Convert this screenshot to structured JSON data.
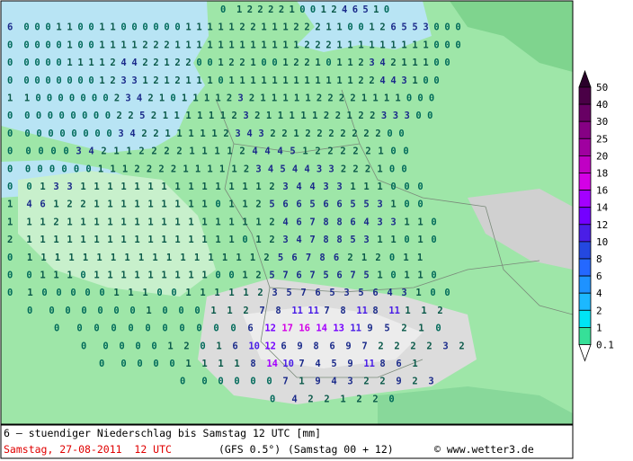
{
  "map": {
    "rows": [
      "0 1 2 2 2 2 1 0 0 1 2 4 6 5 1 0",
      "6 0 0 0 1 1 0 0 1 1 0 0 0 0 0 0 1 1 1 1 1 2 2 1 1 1 2 2 2 1 1 0 0 1 2 6 5 5 3 0 0 0",
      "0 0 0 0 0 1 0 0 1 1 1 1 2 2 2 1 1 1 1 1 1 1 1 1 1 1 1 2 2 2 1 1 1 1 1 1 1 1 1 0 0 0",
      "0 0 0 0 0 1 1 1 1 2 4 4 2 2 1 2 2 0 0 1 2 2 1 0 0 1 2 2 1 0 1 1 2 3 4 2 1 1 1 0 0",
      "0 0 0 0 0 0 0 0 1 2 3 3 1 2 1 2 1 1 1 0 1 1 1 1 1 1 1 1 1 1 1 1 2 2 4 4 3 1 0 0",
      "1 1 0 0 0 0 0 0 0 2 3 4 2 1 0 1 1 1 1 2 3 2 1 1 1 1 1 2 2 2 2 1 1 1 1 0 0 0",
      "0 0 0 0 0 0 0 0 0 2 2 5 2 1 1 1 1 1 1 2 3 2 1 1 1 1 1 2 2 1 2 2 3 3 3 0 0",
      "0 0 0 0 0 0 0 0 0 3 4 2 2 1 1 1 1 1 2 3 4 3 2 2 1 2 2 2 2 2 2 2 0 0",
      "0 0 0 0 0 3 4 2 1 1 2 2 2 2 1 1 1 1 2 4 4 4 5 1 2 2 2 2 2 1 0 0",
      "0 0 0 0 0 0 0 1 1 1 2 2 2 2 1 1 1 1 1 2 3 4 5 4 4 3 3 2 2 2 1 0 0",
      "0 0 1 3 3 1 1 1 1 1 1 1 1 1 1 1 1 1 1 2 3 4 4 3 3 1 1 1 0 0 0",
      "1 4 6 1 2 2 1 1 1 1 1 1 1 1 1 0 1 1 2 5 6 6 5 6 6 5 5 3 1 0 0",
      "1 1 1 2 1 1 1 1 1 1 1 1 1 1 1 1 1 1 1 2 4 6 7 8 8 6 4 3 3 1 1 0",
      "2 1 1 1 1 1 1 1 1 1 1 1 1 1 1 1 1 0 1 2 3 4 7 8 8 5 3 1 1 0 1 0",
      "0 1 1 1 1 1 1 1 1 1 1 1 1 1 1 1 1 1 2 5 6 7 8 6 2 1 2 0 1 1",
      "0 0 1 1 1 0 1 1 1 1 1 1 1 1 1 0 0 1 2 5 7 6 7 5 6 7 5 1 0 1 1 0",
      "0 1 0 0 0 0 0 1 1 1 0 0 1 1 1 1 1 2 3 5 7 6 5 3 5 6 4 3 1 0 0",
      "0 0 0 0 0 0 0 1 0 0 0 1 1 2 7 8 11 11 7 8 11 8 11 1 1 2",
      "0 0 0 0 0 0 0 0 0 0 0 6 12 17 16 14 13 11 9 5 2 1 0",
      "0 0 0 0 0 1 2 0 1 6 10 12 6 9 8 6 9 7 2 2 2 2 3 2",
      "0 0 0 0 0 1 1 1 1 8 14 10 7 4 5 9 11 8 6 1",
      "0 0 0 0 0 0 7 1 9 4 3 2 2 9 2 3",
      "0 4 2 2 1 2 2 0"
    ]
  },
  "colorbar": {
    "labels": [
      50,
      40,
      30,
      25,
      20,
      18,
      16,
      14,
      12,
      10,
      8,
      6,
      4,
      2,
      1,
      0.1
    ],
    "colors": [
      "#4a0046",
      "#680064",
      "#860084",
      "#a000a0",
      "#c000c4",
      "#d400e6",
      "#a400ff",
      "#7400ff",
      "#4a1ee6",
      "#2448e0",
      "#2468ff",
      "#1e92ff",
      "#1cb8ff",
      "#00e4f4",
      "#36e098"
    ]
  },
  "footer": {
    "title": "6 — stuendiger Niederschlag bis Samstag 12 UTC [mm]",
    "date": "Samstag, 27-08-2011  12 UTC",
    "model": "(GFS 0.5°)",
    "run": "(Samstag 00 + 12)",
    "credit": "© www.wetter3.de"
  }
}
